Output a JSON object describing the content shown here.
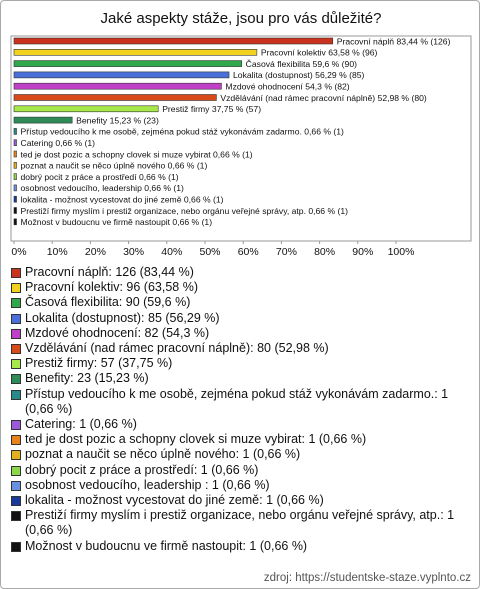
{
  "chart_data": {
    "type": "bar",
    "orientation": "horizontal",
    "title": "Jaké aspekty stáže, jsou pro vás důležité?",
    "categories": [
      "Pracovní náplň",
      "Pracovní kolektiv",
      "Časová flexibilita",
      "Lokalita (dostupnost)",
      "Mzdové ohodnocení",
      "Vzdělávání (nad rámec pracovní náplně)",
      "Prestiž firmy",
      "Benefity",
      "Přístup vedoucího k me osobě, zejména pokud stáž vykonávám zadarmo.",
      "Catering",
      "ted je dost pozic a schopny clovek si muze vybirat",
      "poznat a naučit se něco úplně nového",
      "dobrý pocit z práce a prostředí",
      "osobnost vedoucího, leadership ",
      "lokalita - možnost vycestovat do jiné země",
      "Prestiží firmy myslím i prestiž organizace, nebo orgánu veřejné správy, atp.",
      "Možnost v budoucnu ve firmě nastoupit"
    ],
    "values": [
      83.44,
      63.58,
      59.6,
      56.29,
      54.3,
      52.98,
      37.75,
      15.23,
      0.66,
      0.66,
      0.66,
      0.66,
      0.66,
      0.66,
      0.66,
      0.66,
      0.66
    ],
    "value_labels": [
      "Pracovní náplň 83,44 % (126)",
      "Pracovní kolektiv 63,58 % (96)",
      "Časová flexibilita 59,6 % (90)",
      "Lokalita (dostupnost) 56,29 % (85)",
      "Mzdové ohodnocení 54,3 % (82)",
      "Vzdělávání (nad rámec pracovní náplně) 52,98 % (80)",
      "Prestiž firmy 37,75 % (57)",
      "Benefity 15,23 % (23)",
      "Přístup vedoucího k me osobě, zejména pokud stáž vykonávám zadarmo. 0,66 % (1)",
      "Catering 0,66 % (1)",
      "ted je dost pozic a schopny clovek si muze vybirat 0,66 % (1)",
      "poznat a naučit se něco úplně nového 0,66 % (1)",
      "dobrý pocit z práce a prostředí 0,66 % (1)",
      "osobnost vedoucího, leadership  0,66 % (1)",
      "lokalita - možnost vycestovat do jiné země 0,66 % (1)",
      "Prestiží firmy myslím i prestiž organizace, nebo orgánu veřejné správy, atp. 0,66 % (1)",
      "Možnost v budoucnu ve firmě nastoupit 0,66 % (1)"
    ],
    "legend_labels": [
      "Pracovní náplň: 126 (83,44 %)",
      "Pracovní kolektiv: 96 (63,58 %)",
      "Časová flexibilita: 90 (59,6 %)",
      "Lokalita (dostupnost): 85 (56,29 %)",
      "Mzdové ohodnocení: 82 (54,3 %)",
      "Vzdělávání (nad rámec pracovní náplně): 80 (52,98 %)",
      "Prestiž firmy: 57 (37,75 %)",
      "Benefity: 23 (15,23 %)",
      "Přístup vedoucího k me osobě, zejména pokud stáž vykonávám zadarmo.: 1 (0,66 %)",
      "Catering: 1 (0,66 %)",
      "ted je dost pozic a schopny clovek si muze vybirat: 1 (0,66 %)",
      "poznat a naučit se něco úplně nového: 1 (0,66 %)",
      "dobrý pocit z práce a prostředí: 1 (0,66 %)",
      "osobnost vedoucího, leadership : 1 (0,66 %)",
      "lokalita - možnost vycestovat do jiné země: 1 (0,66 %)",
      "Prestiží firmy myslím i prestiž organizace, nebo orgánu veřejné správy, atp.: 1 (0,66 %)",
      "Možnost v budoucnu ve firmě nastoupit: 1 (0,66 %)"
    ],
    "colors": [
      "#c8321e",
      "#f2d21e",
      "#2ea84a",
      "#4a6fd8",
      "#c040c8",
      "#d84a1a",
      "#a6e84a",
      "#2e8b57",
      "#2a8a8a",
      "#9a5ad8",
      "#e8841a",
      "#e0b020",
      "#8ad84a",
      "#6a90e0",
      "#1a3a9a",
      "#111111",
      "#111111"
    ],
    "xlim": [
      0,
      100
    ],
    "xticks": [
      {
        "value": 0,
        "label": "0%"
      },
      {
        "value": 10,
        "label": "10%"
      },
      {
        "value": 20,
        "label": "20%"
      },
      {
        "value": 30,
        "label": "30%"
      },
      {
        "value": 40,
        "label": "40%"
      },
      {
        "value": 50,
        "label": "50%"
      },
      {
        "value": 60,
        "label": "60%"
      },
      {
        "value": 70,
        "label": "70%"
      },
      {
        "value": 80,
        "label": "80%"
      },
      {
        "value": 90,
        "label": "90%"
      },
      {
        "value": 100,
        "label": "100%"
      }
    ],
    "source": "zdroj: https://studentske-staze.vyplnto.cz"
  }
}
